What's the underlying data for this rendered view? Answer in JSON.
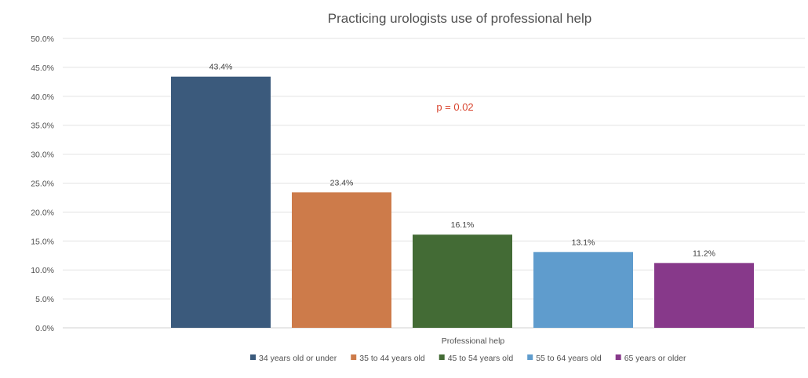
{
  "chart_data": {
    "type": "bar",
    "title": "Practicing urologists use of professional help",
    "xlabel": "Professional help",
    "ylabel": "",
    "ylim": [
      0,
      50
    ],
    "y_tick_step": 5,
    "y_tick_format": "percent_1dp",
    "grid": true,
    "legend_position": "bottom",
    "categories": [
      "Professional help"
    ],
    "series": [
      {
        "name": "34 years old or under",
        "values": [
          43.4
        ],
        "label": "43.4%",
        "color": "#3b5a7c"
      },
      {
        "name": "35 to 44 years old",
        "values": [
          23.4
        ],
        "label": "23.4%",
        "color": "#cd7b4a"
      },
      {
        "name": "45 to 54 years old",
        "values": [
          16.1
        ],
        "label": "16.1%",
        "color": "#436b35"
      },
      {
        "name": "55 to 64 years old",
        "values": [
          13.1
        ],
        "label": "13.1%",
        "color": "#5f9ccd"
      },
      {
        "name": "65 years or older",
        "values": [
          11.2
        ],
        "label": "11.2%",
        "color": "#87398a"
      }
    ],
    "annotations": [
      {
        "text": "p = 0.02",
        "color": "#d9452f"
      }
    ]
  }
}
